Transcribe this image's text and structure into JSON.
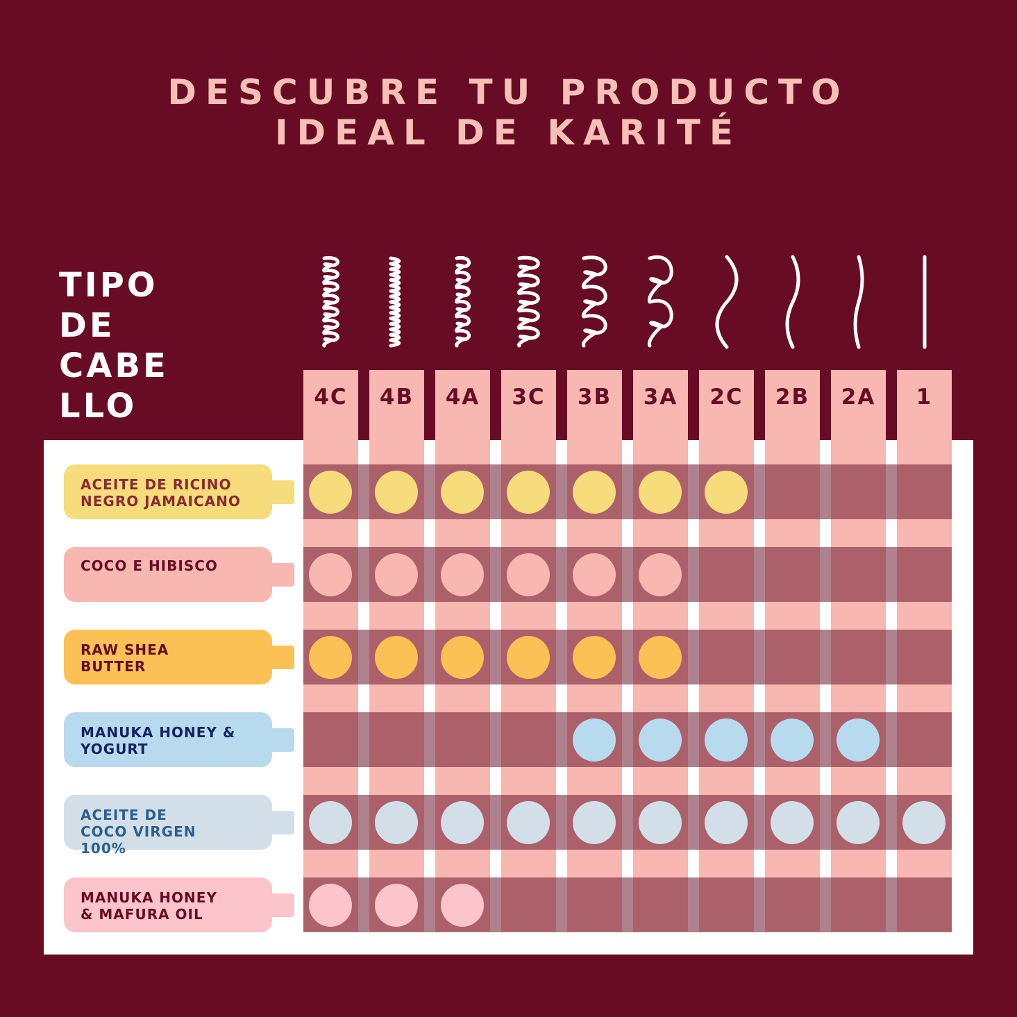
{
  "title": {
    "line1": "DESCUBRE TU PRODUCTO",
    "line2": "IDEAL DE KARITÉ"
  },
  "hair_type_label": [
    "TIPO",
    "DE",
    "CABE",
    "LLO"
  ],
  "hair_types": [
    "4C",
    "4B",
    "4A",
    "3C",
    "3B",
    "3A",
    "2C",
    "2B",
    "2A",
    "1"
  ],
  "products": [
    {
      "lines": [
        "ACEITE DE RICINO",
        "NEGRO JAMAICANO"
      ],
      "color": "#f6dc7a",
      "text_color": "#8a2a35",
      "suitable": [
        "4C",
        "4B",
        "4A",
        "3C",
        "3B",
        "3A",
        "2C"
      ]
    },
    {
      "lines": [
        "COCO E HIBISCO"
      ],
      "color": "#f9b7b1",
      "text_color": "#670c24",
      "suitable": [
        "4C",
        "4B",
        "4A",
        "3C",
        "3B",
        "3A"
      ]
    },
    {
      "lines": [
        "RAW SHEA",
        "BUTTER"
      ],
      "color": "#fcc155",
      "text_color": "#670c24",
      "suitable": [
        "4C",
        "4B",
        "4A",
        "3C",
        "3B",
        "3A"
      ]
    },
    {
      "lines": [
        "MANUKA HONEY &",
        "YOGURT"
      ],
      "color": "#b8daee",
      "text_color": "#14235e",
      "suitable": [
        "3B",
        "3A",
        "2C",
        "2B",
        "2A"
      ]
    },
    {
      "lines": [
        "ACEITE DE",
        "COCO VIRGEN",
        "100%"
      ],
      "color": "#d3dfe8",
      "text_color": "#2a5f8f",
      "suitable": [
        "4C",
        "4B",
        "4A",
        "3C",
        "3B",
        "3A",
        "2C",
        "2B",
        "2A",
        "1"
      ]
    },
    {
      "lines": [
        "MANUKA HONEY",
        "& MAFURA OIL"
      ],
      "color": "#fcc4cb",
      "text_color": "#670c24",
      "suitable": [
        "4C",
        "4B",
        "4A"
      ]
    }
  ],
  "icons": [
    "curl-4c-icon",
    "curl-4b-icon",
    "curl-4a-icon",
    "curl-3c-icon",
    "curl-3b-icon",
    "curl-3a-icon",
    "wave-2c-icon",
    "wave-2b-icon",
    "wave-2a-icon",
    "straight-1-icon"
  ],
  "colors": {
    "background": "#670c24",
    "title": "#f7c0b6",
    "column": "#f9b7b1"
  }
}
